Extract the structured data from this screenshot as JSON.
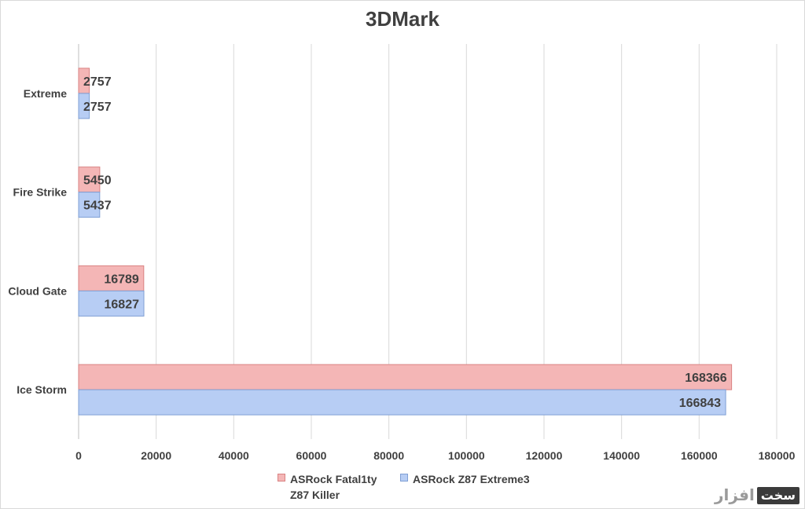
{
  "chart_data": {
    "type": "bar",
    "orientation": "horizontal",
    "title": "3DMark",
    "categories": [
      "Extreme",
      "Fire Strike",
      "Cloud Gate",
      "Ice Storm"
    ],
    "series": [
      {
        "name": "ASRock Fatal1ty Z87 Killer",
        "name_lines": [
          "ASRock Fatal1ty",
          "Z87 Killer"
        ],
        "values": [
          2757,
          5450,
          16789,
          168366
        ],
        "color": "#f4b6b6",
        "stroke": "#d98282"
      },
      {
        "name": "ASRock Z87 Extreme3",
        "name_lines": [
          "ASRock Z87 Extreme3"
        ],
        "values": [
          2757,
          5437,
          16827,
          166843
        ],
        "color": "#b7cdf4",
        "stroke": "#7f9fd4"
      }
    ],
    "xlim": [
      0,
      180000
    ],
    "xticks": [
      0,
      20000,
      40000,
      60000,
      80000,
      100000,
      120000,
      140000,
      160000,
      180000
    ],
    "grid": true,
    "legend": "bottom",
    "data_labels": true
  },
  "watermark": {
    "text": "افزار",
    "box": "سخت"
  }
}
